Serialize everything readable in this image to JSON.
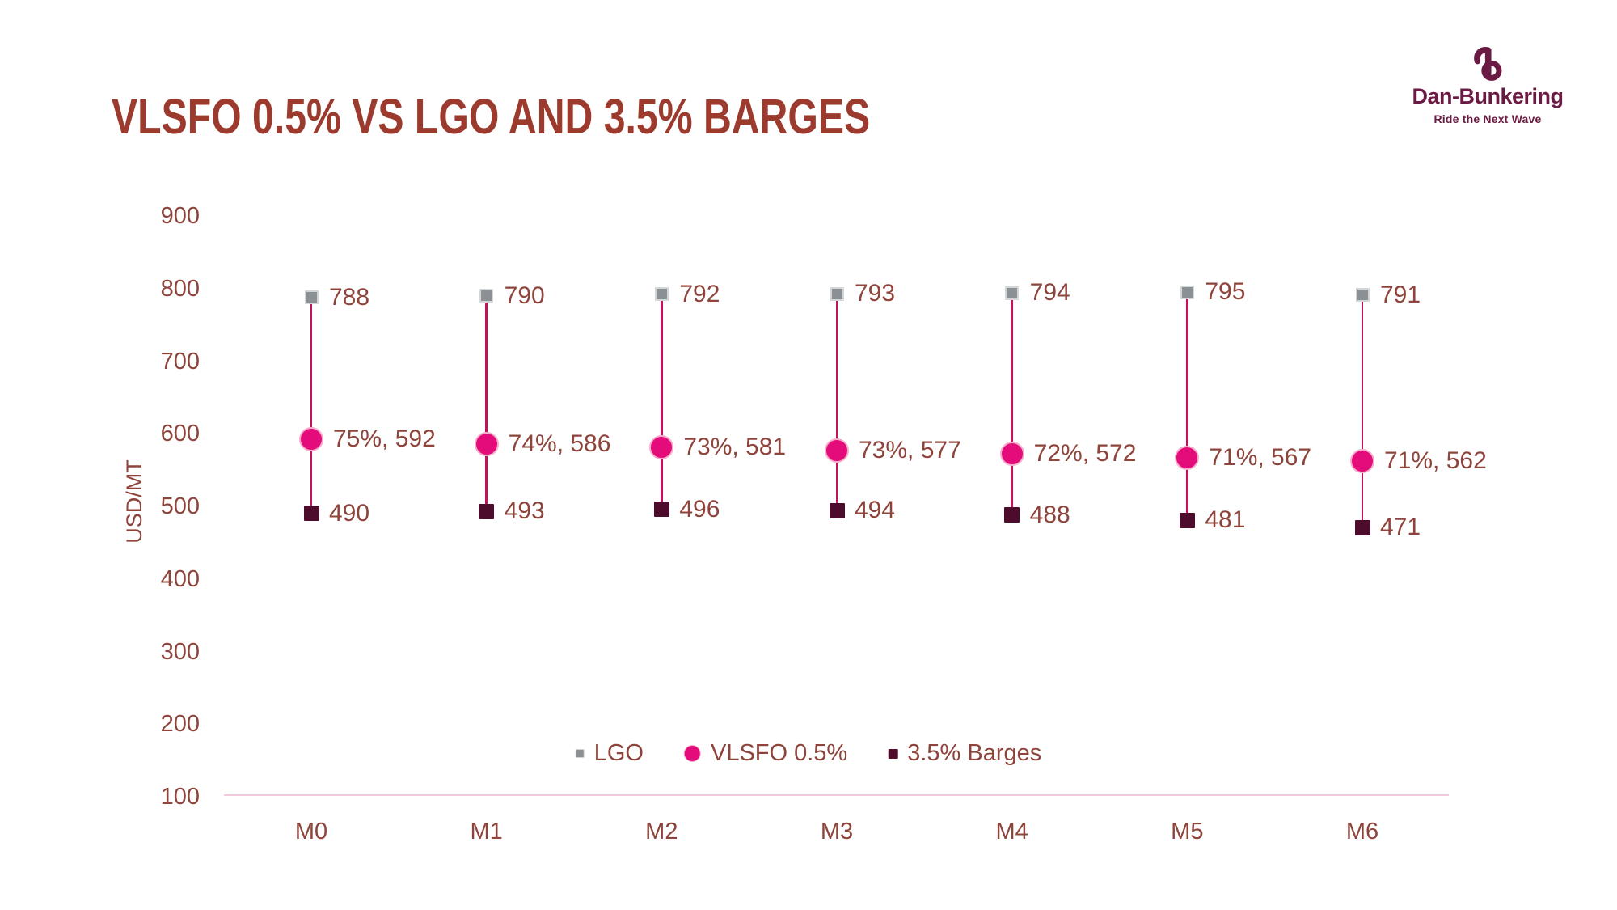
{
  "title": "VLSFO 0.5% VS LGO AND 3.5% BARGES",
  "logo": {
    "name": "Dan-Bunkering",
    "tagline": "Ride the Next Wave",
    "color": "#6B1B43"
  },
  "colors": {
    "title_text": "#9C3A2E",
    "chart_text": "#8E443B",
    "axis_line": "#F2CADD",
    "connector_line": "#C6115F"
  },
  "chart_data": {
    "type": "scatter",
    "subtype": "high-low-close",
    "title": "VLSFO 0.5% VS LGO AND 3.5% BARGES",
    "categories": [
      "M0",
      "M1",
      "M2",
      "M3",
      "M4",
      "M5",
      "M6"
    ],
    "series": [
      {
        "name": "LGO",
        "marker": "square",
        "marker_size": 13,
        "marker_color": "#8A9094",
        "marker_border": "#D3D6D7",
        "values": [
          788,
          790,
          792,
          793,
          794,
          795,
          791
        ],
        "labels": [
          "788",
          "790",
          "792",
          "793",
          "794",
          "795",
          "791"
        ]
      },
      {
        "name": "VLSFO 0.5%",
        "marker": "circle",
        "marker_size": 26,
        "marker_color": "#E40C7B",
        "marker_border": "#F4AECB",
        "values": [
          592,
          586,
          581,
          577,
          572,
          567,
          562
        ],
        "labels": [
          "75%, 592",
          "74%, 586",
          "73%, 581",
          "73%, 577",
          "72%, 572",
          "71%, 567",
          "71%, 562"
        ]
      },
      {
        "name": "3.5% Barges",
        "marker": "square",
        "marker_size": 15,
        "marker_color": "#4E0C2C",
        "marker_border": "#4E0C2C",
        "values": [
          490,
          493,
          496,
          494,
          488,
          481,
          471
        ],
        "labels": [
          "490",
          "493",
          "496",
          "494",
          "488",
          "481",
          "471"
        ]
      }
    ],
    "xlabel": "",
    "ylabel": "USD/MT",
    "ylim": [
      100,
      900
    ],
    "yticks": [
      900,
      800,
      700,
      600,
      500,
      400,
      300,
      200,
      100
    ],
    "grid": false,
    "legend_position": "bottom"
  }
}
